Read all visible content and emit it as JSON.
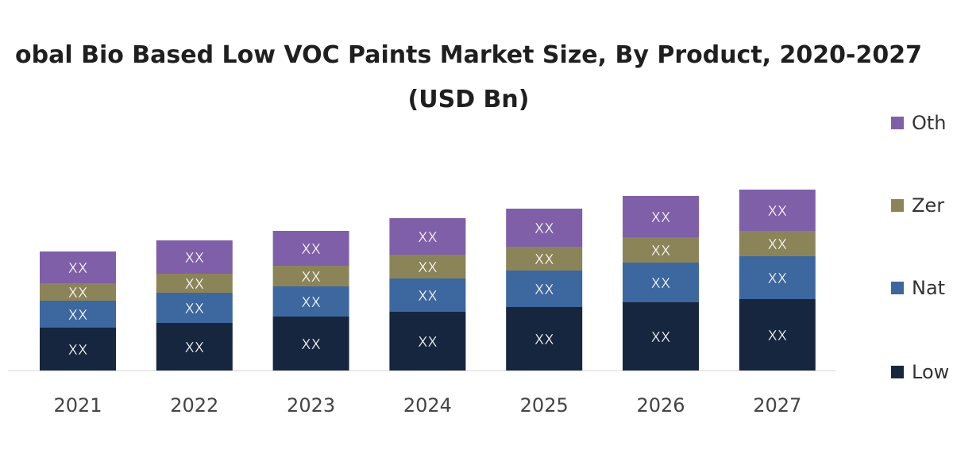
{
  "chart_data": {
    "type": "bar",
    "stacked": true,
    "title_line1": "obal Bio Based Low VOC Paints Market Size, By Product, 2020-2027",
    "title_line2": "(USD Bn)",
    "categories": [
      "2021",
      "2022",
      "2023",
      "2024",
      "2025",
      "2026",
      "2027"
    ],
    "series": [
      {
        "name": "Low",
        "color": "#17263f",
        "values": [
          2.7,
          3.0,
          3.4,
          3.7,
          4.0,
          4.3,
          4.5
        ],
        "labels": [
          "XX",
          "XX",
          "XX",
          "XX",
          "XX",
          "XX",
          "XX"
        ]
      },
      {
        "name": "Nat",
        "color": "#3d679f",
        "values": [
          1.7,
          1.9,
          1.9,
          2.1,
          2.3,
          2.5,
          2.7
        ],
        "labels": [
          "XX",
          "XX",
          "XX",
          "XX",
          "XX",
          "XX",
          "XX"
        ]
      },
      {
        "name": "Zero",
        "color": "#8c8459",
        "values": [
          1.1,
          1.2,
          1.3,
          1.5,
          1.5,
          1.6,
          1.6
        ],
        "labels": [
          "XX",
          "XX",
          "XX",
          "XX",
          "XX",
          "XX",
          "XX"
        ]
      },
      {
        "name": "Other",
        "color": "#7f60a8",
        "values": [
          2.0,
          2.1,
          2.2,
          2.3,
          2.4,
          2.6,
          2.6
        ],
        "labels": [
          "XX",
          "XX",
          "XX",
          "XX",
          "XX",
          "XX",
          "XX"
        ]
      }
    ],
    "legend_display": [
      "Low",
      "Nat",
      "Zer",
      "Oth"
    ],
    "legend_position": "right",
    "ylim": [
      0,
      12
    ],
    "grid": false,
    "xlabel": "",
    "ylabel": ""
  }
}
